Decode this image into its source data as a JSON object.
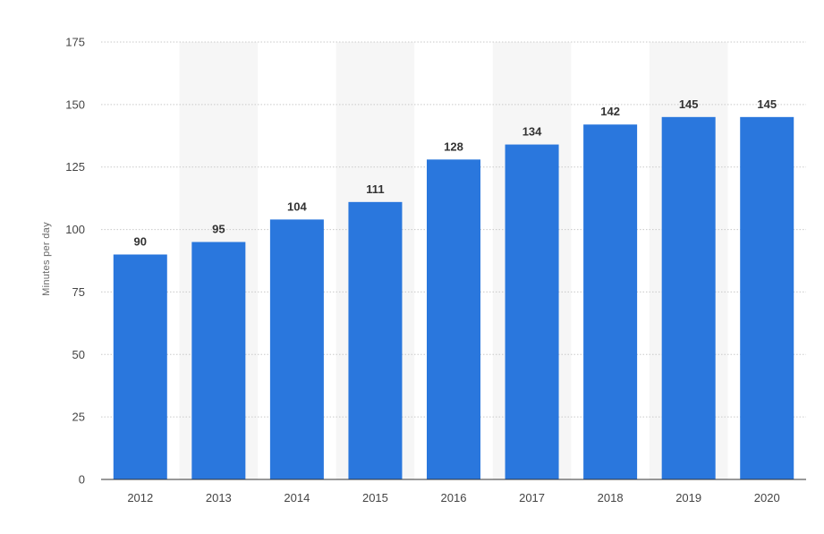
{
  "chart_data": {
    "type": "bar",
    "title": "",
    "xlabel": "",
    "ylabel": "Minutes per day",
    "categories": [
      "2012",
      "2013",
      "2014",
      "2015",
      "2016",
      "2017",
      "2018",
      "2019",
      "2020"
    ],
    "values": [
      90,
      95,
      104,
      111,
      128,
      134,
      142,
      145,
      145
    ],
    "ylim": [
      0,
      175
    ],
    "yticks": [
      0,
      25,
      50,
      75,
      100,
      125,
      150,
      175
    ],
    "grid": true,
    "legend": "none",
    "data_labels": true,
    "colors": {
      "bar": "#2a77dd",
      "alt_band": "#f6f6f6"
    }
  }
}
